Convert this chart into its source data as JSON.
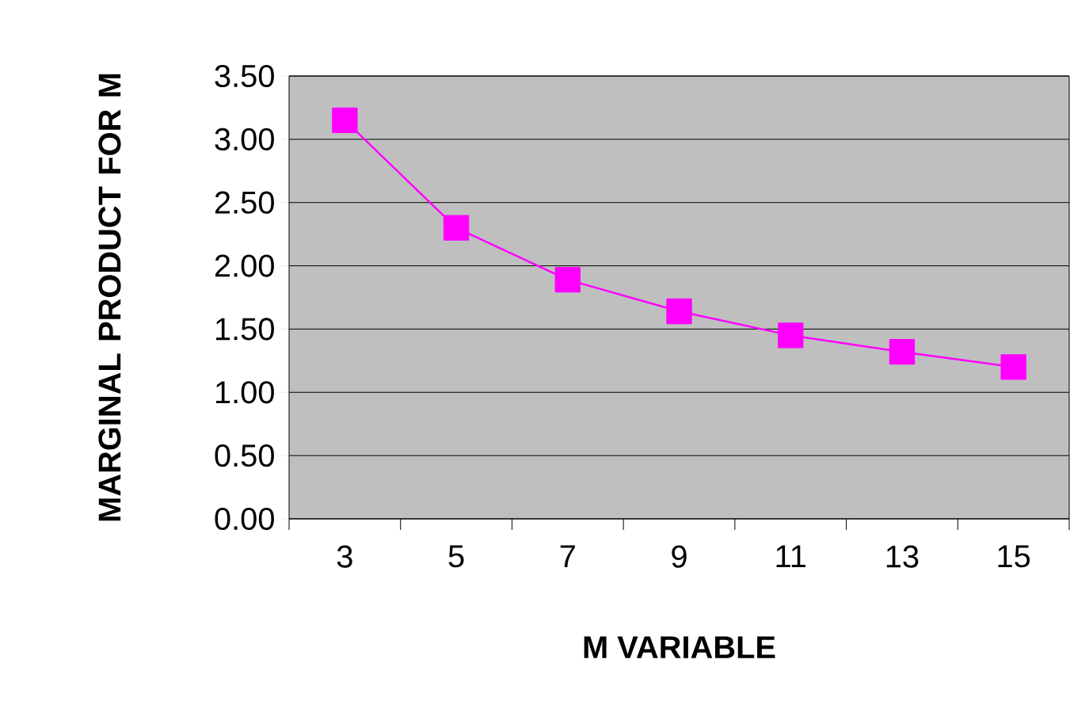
{
  "chart_data": {
    "type": "line",
    "xlabel": "M VARIABLE",
    "ylabel": "MARGINAL PRODUCT FOR M",
    "categories": [
      "3",
      "5",
      "7",
      "9",
      "11",
      "13",
      "15"
    ],
    "series": [
      {
        "color": "#ff00ff",
        "values": [
          3.15,
          2.3,
          1.89,
          1.64,
          1.45,
          1.32,
          1.2
        ]
      }
    ],
    "ylim": [
      0,
      3.5
    ],
    "yticks": [
      {
        "value": 0,
        "label": "0.00"
      },
      {
        "value": 0.5,
        "label": "0.50"
      },
      {
        "value": 1,
        "label": "1.00"
      },
      {
        "value": 1.5,
        "label": "1.50"
      },
      {
        "value": 2,
        "label": "2.00"
      },
      {
        "value": 2.5,
        "label": "2.50"
      },
      {
        "value": 3,
        "label": "3.00"
      },
      {
        "value": 3.5,
        "label": "3.50"
      }
    ],
    "grid": "y",
    "marker": "square",
    "line_style": "solid"
  }
}
